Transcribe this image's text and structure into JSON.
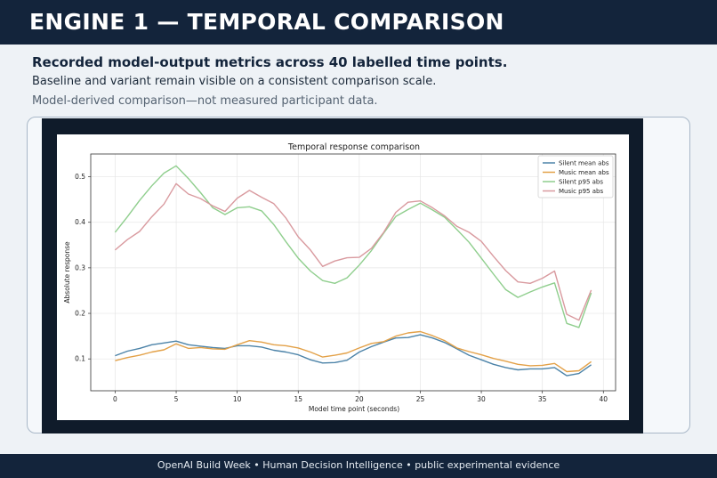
{
  "header": {
    "title": "ENGINE 1 — TEMPORAL COMPARISON"
  },
  "intro": {
    "headline": "Recorded model-output metrics across 40 labelled time points.",
    "subline": "Baseline and variant remain visible on a consistent comparison scale.",
    "note": "Model-derived comparison—not measured participant data."
  },
  "footer": {
    "text": "OpenAI Build Week • Human Decision Intelligence • public experimental evidence"
  },
  "colors": {
    "silent_mean": "#4c83a8",
    "music_mean": "#e3a148",
    "silent_p95": "#8fce8d",
    "music_p95": "#d99a9f"
  },
  "chart_data": {
    "type": "line",
    "title": "Temporal response comparison",
    "xlabel": "Model time point (seconds)",
    "ylabel": "Absolute response",
    "xlim": [
      -2,
      41
    ],
    "ylim": [
      0.03,
      0.55
    ],
    "xticks": [
      0,
      5,
      10,
      15,
      20,
      25,
      30,
      35,
      40
    ],
    "yticks": [
      0.1,
      0.2,
      0.3,
      0.4,
      0.5
    ],
    "grid": true,
    "legend_position": "top-right",
    "x": [
      0,
      1,
      2,
      3,
      4,
      5,
      6,
      7,
      8,
      9,
      10,
      11,
      12,
      13,
      14,
      15,
      16,
      17,
      18,
      19,
      20,
      21,
      22,
      23,
      24,
      25,
      26,
      27,
      28,
      29,
      30,
      31,
      32,
      33,
      34,
      35,
      36,
      37,
      38,
      39
    ],
    "series": [
      {
        "name": "Silent mean abs",
        "color_key": "silent_mean",
        "values": [
          0.107,
          0.117,
          0.123,
          0.131,
          0.135,
          0.139,
          0.131,
          0.128,
          0.125,
          0.123,
          0.129,
          0.129,
          0.126,
          0.119,
          0.115,
          0.109,
          0.098,
          0.091,
          0.092,
          0.097,
          0.115,
          0.127,
          0.137,
          0.146,
          0.147,
          0.153,
          0.146,
          0.136,
          0.122,
          0.108,
          0.098,
          0.088,
          0.081,
          0.076,
          0.078,
          0.078,
          0.081,
          0.063,
          0.068,
          0.087
        ]
      },
      {
        "name": "Music mean abs",
        "color_key": "music_mean",
        "values": [
          0.096,
          0.103,
          0.108,
          0.115,
          0.12,
          0.133,
          0.123,
          0.125,
          0.122,
          0.121,
          0.131,
          0.14,
          0.137,
          0.131,
          0.129,
          0.124,
          0.115,
          0.104,
          0.108,
          0.113,
          0.124,
          0.134,
          0.138,
          0.15,
          0.157,
          0.16,
          0.151,
          0.14,
          0.124,
          0.116,
          0.109,
          0.101,
          0.095,
          0.088,
          0.085,
          0.086,
          0.09,
          0.072,
          0.074,
          0.094
        ]
      },
      {
        "name": "Silent p95 abs",
        "color_key": "silent_p95",
        "values": [
          0.378,
          0.412,
          0.448,
          0.48,
          0.508,
          0.524,
          0.496,
          0.465,
          0.432,
          0.417,
          0.432,
          0.434,
          0.425,
          0.395,
          0.357,
          0.321,
          0.293,
          0.272,
          0.266,
          0.278,
          0.306,
          0.338,
          0.376,
          0.413,
          0.428,
          0.442,
          0.427,
          0.411,
          0.384,
          0.356,
          0.321,
          0.286,
          0.252,
          0.235,
          0.247,
          0.258,
          0.267,
          0.178,
          0.169,
          0.245
        ]
      },
      {
        "name": "Music p95 abs",
        "color_key": "music_p95",
        "values": [
          0.339,
          0.362,
          0.38,
          0.412,
          0.44,
          0.485,
          0.462,
          0.452,
          0.436,
          0.424,
          0.453,
          0.47,
          0.455,
          0.441,
          0.409,
          0.368,
          0.339,
          0.303,
          0.315,
          0.322,
          0.323,
          0.343,
          0.378,
          0.422,
          0.444,
          0.447,
          0.432,
          0.414,
          0.391,
          0.378,
          0.358,
          0.325,
          0.294,
          0.269,
          0.266,
          0.277,
          0.293,
          0.198,
          0.185,
          0.251
        ]
      }
    ]
  }
}
